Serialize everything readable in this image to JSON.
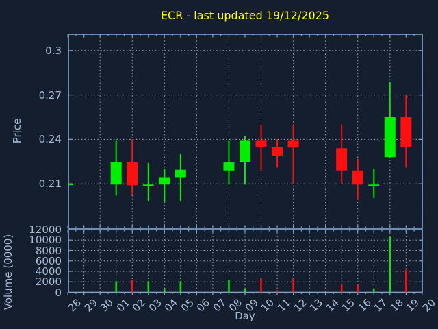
{
  "window": {
    "kind": "chart-image"
  },
  "chart_data": {
    "type": "candlestick",
    "title": "ECR - last updated 19/12/2025",
    "xlabel": "Day",
    "price_ylabel": "Price",
    "volume_ylabel": "Volume (0000)",
    "x_labels": [
      "28",
      "29",
      "30",
      "01",
      "02",
      "03",
      "04",
      "05",
      "06",
      "07",
      "08",
      "09",
      "10",
      "11",
      "12",
      "13",
      "14",
      "15",
      "16",
      "17",
      "18",
      "19",
      "20"
    ],
    "price_ticks": [
      {
        "label": "0.3",
        "value": 0.3
      },
      {
        "label": "0.27",
        "value": 0.27
      },
      {
        "label": "0.24",
        "value": 0.24
      },
      {
        "label": "0.21",
        "value": 0.21
      }
    ],
    "volume_ticks": [
      {
        "label": "12000",
        "value": 12000
      },
      {
        "label": "10000",
        "value": 10000
      },
      {
        "label": "8000",
        "value": 8000
      },
      {
        "label": "6000",
        "value": 6000
      },
      {
        "label": "4000",
        "value": 4000
      },
      {
        "label": "2000",
        "value": 2000
      },
      {
        "label": "0",
        "value": 0
      }
    ],
    "price_ylim": [
      0.18,
      0.311
    ],
    "volume_ylim": [
      0,
      12000
    ],
    "grid": true,
    "legend": "none",
    "candles": [
      {
        "day": "28",
        "open": 0.21,
        "high": 0.21,
        "low": 0.21,
        "close": 0.21,
        "volume": 0
      },
      {
        "day": "01",
        "open": 0.2095,
        "high": 0.2395,
        "low": 0.202,
        "close": 0.2245,
        "volume": 2100
      },
      {
        "day": "02",
        "open": 0.2245,
        "high": 0.24,
        "low": 0.2025,
        "close": 0.209,
        "volume": 2300
      },
      {
        "day": "03",
        "open": 0.2085,
        "high": 0.224,
        "low": 0.1985,
        "close": 0.2095,
        "volume": 2100
      },
      {
        "day": "04",
        "open": 0.2095,
        "high": 0.22,
        "low": 0.198,
        "close": 0.2145,
        "volume": 600
      },
      {
        "day": "05",
        "open": 0.2145,
        "high": 0.23,
        "low": 0.1985,
        "close": 0.2195,
        "volume": 2100
      },
      {
        "day": "08",
        "open": 0.219,
        "high": 0.2395,
        "low": 0.2095,
        "close": 0.2245,
        "volume": 2300
      },
      {
        "day": "09",
        "open": 0.2245,
        "high": 0.242,
        "low": 0.2095,
        "close": 0.2395,
        "volume": 700
      },
      {
        "day": "10",
        "open": 0.2395,
        "high": 0.25,
        "low": 0.219,
        "close": 0.235,
        "volume": 2700
      },
      {
        "day": "11",
        "open": 0.235,
        "high": 0.24,
        "low": 0.221,
        "close": 0.229,
        "volume": 400
      },
      {
        "day": "12",
        "open": 0.2395,
        "high": 0.25,
        "low": 0.21,
        "close": 0.2345,
        "volume": 2700
      },
      {
        "day": "15",
        "open": 0.234,
        "high": 0.25,
        "low": 0.21,
        "close": 0.219,
        "volume": 1500
      },
      {
        "day": "16",
        "open": 0.219,
        "high": 0.227,
        "low": 0.199,
        "close": 0.2095,
        "volume": 1500
      },
      {
        "day": "17",
        "open": 0.2085,
        "high": 0.22,
        "low": 0.2005,
        "close": 0.2095,
        "volume": 600
      },
      {
        "day": "18",
        "open": 0.228,
        "high": 0.279,
        "low": 0.2275,
        "close": 0.255,
        "volume": 10600
      },
      {
        "day": "19",
        "open": 0.255,
        "high": 0.27,
        "low": 0.221,
        "close": 0.235,
        "volume": 4300
      }
    ],
    "colors": {
      "background": "#141e2e",
      "border": "#7e9fc7",
      "grid": "#bcc3cc",
      "tick_label": "#a7bdd8",
      "title": "#ffff00",
      "up": "#00ee00",
      "down": "#ff1010"
    }
  }
}
